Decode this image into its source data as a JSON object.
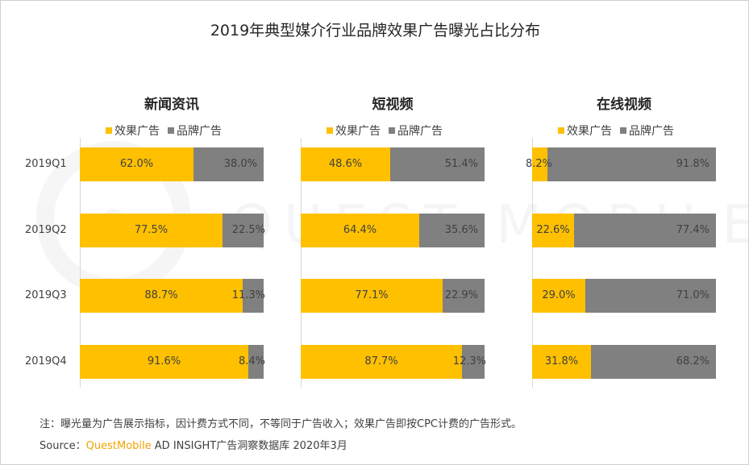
{
  "title": "2019年典型媒介行业品牌效果广告曝光占比分布",
  "colors": {
    "effect": "#FFC000",
    "brand": "#808080"
  },
  "chart_data": {
    "type": "bar",
    "orientation": "horizontal",
    "stacked": "percent",
    "categories": [
      "2019Q1",
      "2019Q2",
      "2019Q3",
      "2019Q4"
    ],
    "legend_placement": "top",
    "grid": false,
    "panels": [
      {
        "title": "新闻资讯",
        "legend": [
          "效果广告",
          "品牌广告"
        ],
        "series": [
          {
            "name": "效果广告",
            "values": [
              62.0,
              77.5,
              88.7,
              91.6
            ],
            "labels": [
              "62.0%",
              "77.5%",
              "88.7%",
              "91.6%"
            ]
          },
          {
            "name": "品牌广告",
            "values": [
              38.0,
              22.5,
              11.3,
              8.4
            ],
            "labels": [
              "38.0%",
              "22.5%",
              "11.3%",
              "8.4%"
            ]
          }
        ]
      },
      {
        "title": "短视频",
        "legend": [
          "效果广告",
          "品牌广告"
        ],
        "series": [
          {
            "name": "效果广告",
            "values": [
              48.6,
              64.4,
              77.1,
              87.7
            ],
            "labels": [
              "48.6%",
              "64.4%",
              "77.1%",
              "87.7%"
            ]
          },
          {
            "name": "品牌广告",
            "values": [
              51.4,
              35.6,
              22.9,
              12.3
            ],
            "labels": [
              "51.4%",
              "35.6%",
              "22.9%",
              "12.3%"
            ]
          }
        ]
      },
      {
        "title": "在线视频",
        "legend": [
          "效果广告",
          "品牌广告"
        ],
        "series": [
          {
            "name": "效果广告",
            "values": [
              8.2,
              22.6,
              29.0,
              31.8
            ],
            "labels": [
              "8.2%",
              "22.6%",
              "29.0%",
              "31.8%"
            ]
          },
          {
            "name": "品牌广告",
            "values": [
              91.8,
              77.4,
              71.0,
              68.2
            ],
            "labels": [
              "91.8%",
              "77.4%",
              "71.0%",
              "68.2%"
            ]
          }
        ]
      }
    ]
  },
  "footnote": "注：曝光量为广告展示指标，因计费方式不同，不等同于广告收入；效果广告即按CPC计费的广告形式。",
  "source": {
    "prefix": "Source：",
    "brand": "QuestMobile",
    "rest": "AD INSIGHT广告洞察数据库 2020年3月"
  },
  "watermark": "QUEST MOBILE"
}
